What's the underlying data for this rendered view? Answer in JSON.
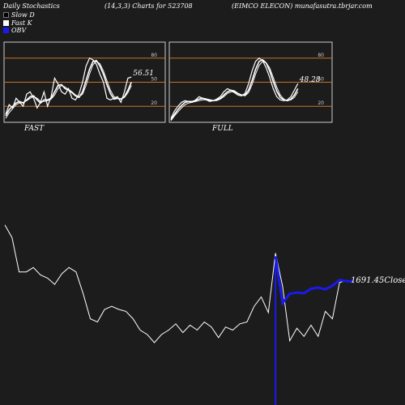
{
  "header": {
    "left": "Daily Stochastics",
    "middle": "(14,3,3) Charts for 523708",
    "right": "(EIMCO ELECON) munafasutra.tbrjar.com"
  },
  "legend": [
    {
      "label": "Slow  D",
      "swatch": "black"
    },
    {
      "label": "Fast K",
      "swatch": "white"
    },
    {
      "label": "OBV",
      "swatch": "blue"
    }
  ],
  "colors": {
    "background": "#1c1c1c",
    "panel_border": "#cccccc",
    "level_line": "#c8742a",
    "stoch_line": "#ffffff",
    "price_line": "#ffffff",
    "obv_line": "#1a1aee"
  },
  "chart_data": [
    {
      "type": "line",
      "title": "FAST",
      "yticks": [
        "80",
        "50",
        "20"
      ],
      "levels": [
        80,
        50,
        20
      ],
      "ylim": [
        0,
        100
      ],
      "last_value_label": "56.51",
      "series": [
        {
          "role": "fast-k",
          "values": [
            10,
            22,
            18,
            30,
            25,
            20,
            35,
            38,
            30,
            18,
            25,
            38,
            20,
            32,
            55,
            48,
            38,
            35,
            42,
            30,
            28,
            35,
            50,
            70,
            80,
            78,
            72,
            60,
            50,
            30,
            28,
            30,
            32,
            25,
            38,
            55,
            56.51
          ]
        },
        {
          "role": "slow-d",
          "values": [
            8,
            16,
            20,
            24,
            26,
            24,
            28,
            32,
            33,
            28,
            24,
            28,
            28,
            30,
            38,
            46,
            47,
            42,
            40,
            37,
            33,
            31,
            38,
            52,
            66,
            76,
            77,
            70,
            60,
            47,
            36,
            29,
            30,
            29,
            32,
            40,
            50
          ]
        },
        {
          "role": "extra",
          "values": [
            5,
            12,
            17,
            22,
            24,
            25,
            27,
            30,
            32,
            30,
            26,
            26,
            27,
            29,
            34,
            42,
            46,
            44,
            41,
            38,
            34,
            32,
            35,
            46,
            60,
            72,
            76,
            73,
            64,
            52,
            40,
            32,
            30,
            29,
            31,
            37,
            46
          ]
        }
      ]
    },
    {
      "type": "line",
      "title": "FULL",
      "yticks": [
        "80",
        "50",
        "20"
      ],
      "levels": [
        80,
        50,
        20
      ],
      "ylim": [
        0,
        100
      ],
      "last_value_label": "48.28",
      "series": [
        {
          "role": "full-k",
          "values": [
            5,
            14,
            20,
            25,
            27,
            26,
            25,
            28,
            32,
            30,
            28,
            26,
            27,
            29,
            32,
            38,
            42,
            40,
            37,
            34,
            33,
            36,
            48,
            64,
            76,
            80,
            77,
            68,
            56,
            42,
            32,
            28,
            27,
            28,
            32,
            40,
            48.28
          ]
        },
        {
          "role": "full-d",
          "values": [
            3,
            10,
            16,
            21,
            25,
            26,
            26,
            27,
            29,
            30,
            29,
            28,
            27,
            28,
            30,
            34,
            38,
            40,
            39,
            36,
            34,
            34,
            40,
            52,
            66,
            76,
            78,
            74,
            64,
            51,
            39,
            31,
            28,
            27,
            29,
            34,
            42
          ]
        },
        {
          "role": "extra",
          "values": [
            2,
            8,
            13,
            18,
            22,
            24,
            25,
            26,
            27,
            28,
            28,
            27,
            27,
            27,
            29,
            32,
            36,
            38,
            38,
            36,
            34,
            33,
            37,
            47,
            60,
            71,
            76,
            74,
            68,
            56,
            44,
            34,
            29,
            27,
            28,
            31,
            38
          ]
        }
      ]
    },
    {
      "type": "line",
      "title": "",
      "last_value_label": "1691.45Close",
      "series": [
        {
          "role": "price",
          "values": [
            1780,
            1760,
            1705,
            1705,
            1712,
            1700,
            1695,
            1685,
            1702,
            1712,
            1705,
            1670,
            1630,
            1625,
            1645,
            1650,
            1645,
            1642,
            1630,
            1612,
            1605,
            1592,
            1605,
            1612,
            1622,
            1608,
            1620,
            1612,
            1625,
            1617,
            1600,
            1617,
            1612,
            1622,
            1625,
            1650,
            1665,
            1640,
            1735,
            1682,
            1595,
            1615,
            1602,
            1620,
            1602,
            1642,
            1630,
            1688,
            1691.45
          ]
        },
        {
          "role": "obv",
          "start_index": 38,
          "values": [
            1730,
            1655,
            1670,
            1672,
            1671,
            1678,
            1680,
            1677,
            1683,
            1692,
            1690,
            1690
          ]
        }
      ],
      "volume_spike": {
        "index": 38,
        "relative_height": 0.72
      }
    }
  ]
}
